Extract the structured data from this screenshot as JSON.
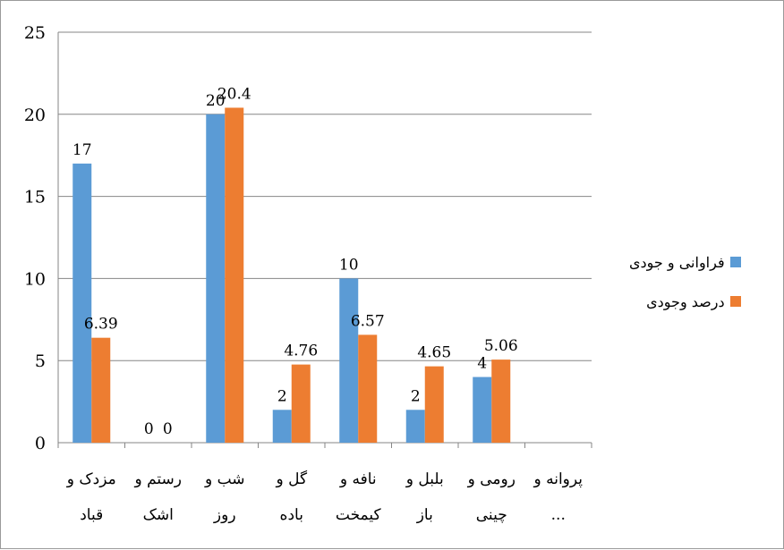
{
  "chart_data": {
    "type": "bar",
    "categories": [
      [
        "مزدک و",
        "قباد"
      ],
      [
        "رستم و",
        "اشک"
      ],
      [
        "شب و",
        "روز"
      ],
      [
        "گل و",
        "باده"
      ],
      [
        "نافه و",
        "کیمخت"
      ],
      [
        "بلبل و",
        "باز"
      ],
      [
        "رومی و",
        "چینی"
      ],
      [
        "پروانه و",
        "..."
      ]
    ],
    "series": [
      {
        "name": "فراوانی و جودی",
        "color": "#5b9bd5",
        "values": [
          17,
          0,
          20,
          2,
          10,
          2,
          4,
          null
        ],
        "labels": [
          "17",
          "0",
          "20",
          "2",
          "10",
          "2",
          "4",
          ""
        ]
      },
      {
        "name": "درصد وجودی",
        "color": "#ed7d31",
        "values": [
          6.39,
          0,
          20.4,
          4.76,
          6.57,
          4.65,
          5.06,
          null
        ],
        "labels": [
          "6.39",
          "0",
          "20.4",
          "4.76",
          "6.57",
          "4.65",
          "5.06",
          ""
        ]
      }
    ],
    "ylim": [
      0,
      25
    ],
    "yticks": [
      0,
      5,
      10,
      15,
      20,
      25
    ],
    "grid": true,
    "legend": "right"
  }
}
